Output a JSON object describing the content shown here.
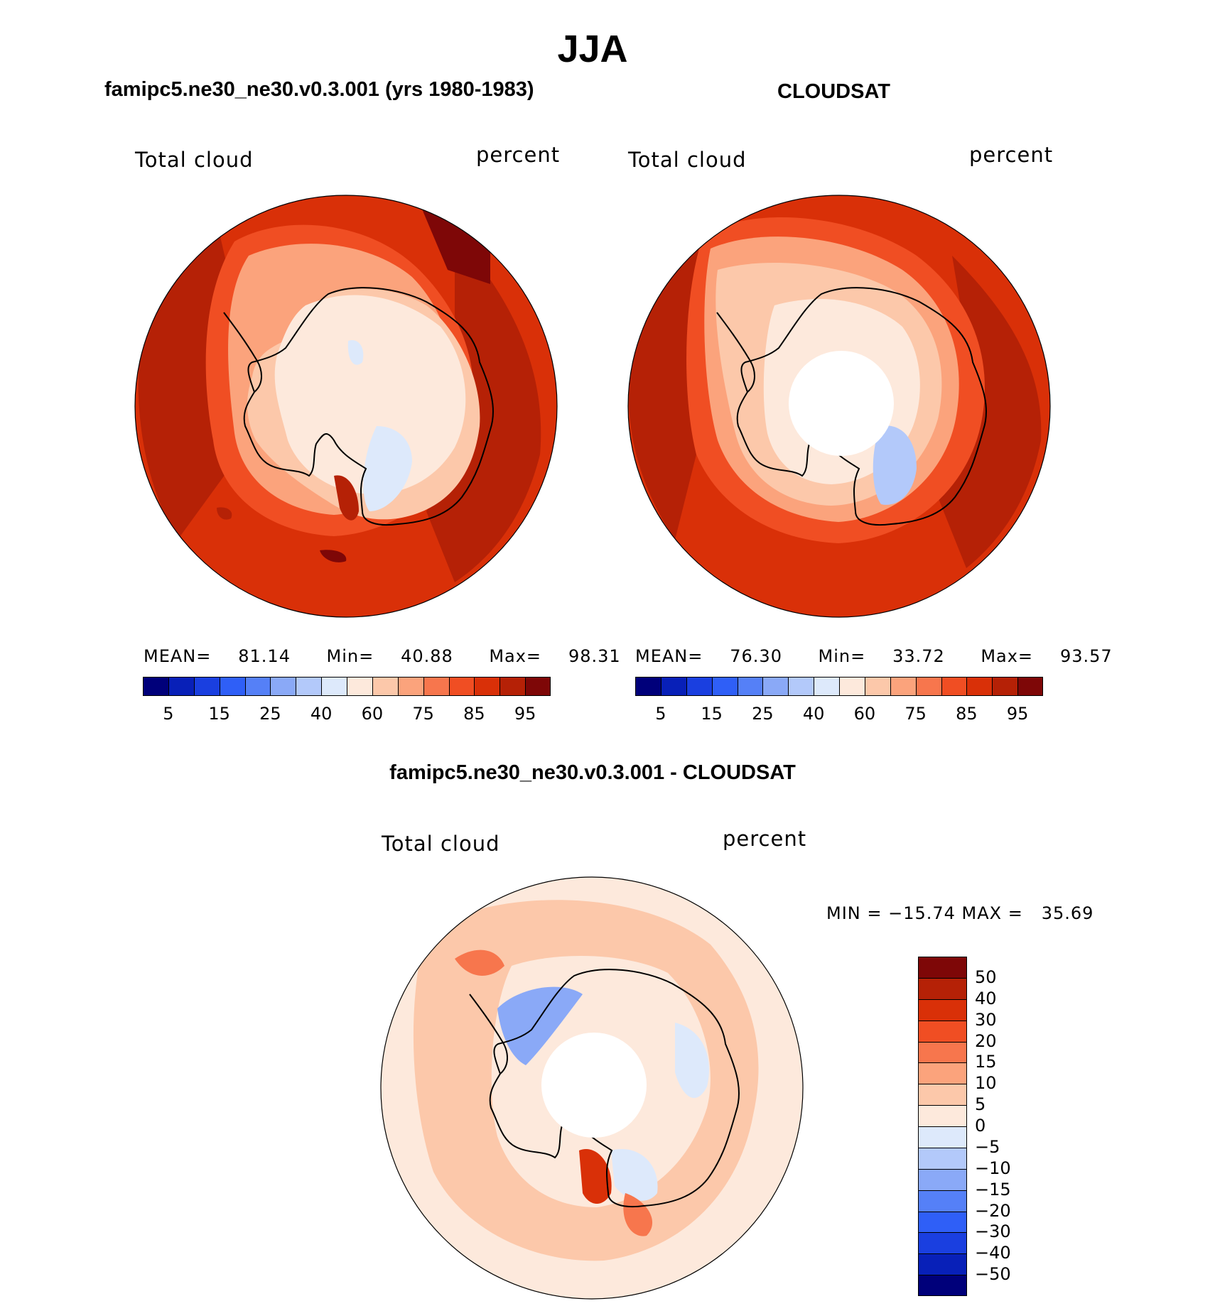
{
  "page_title": "JJA",
  "panels": [
    {
      "heading": "famipc5.ne30_ne30.v0.3.001 (yrs 1980-1983)",
      "variable": "Total cloud",
      "units": "percent",
      "stats": {
        "mean_label": "MEAN=",
        "mean": "81.14",
        "min_label": "Min=",
        "min": "40.88",
        "max_label": "Max=",
        "max": "98.31"
      }
    },
    {
      "heading": "CLOUDSAT",
      "variable": "Total cloud",
      "units": "percent",
      "stats": {
        "mean_label": "MEAN=",
        "mean": "76.30",
        "min_label": "Min=",
        "min": "33.72",
        "max_label": "Max=",
        "max": "93.57"
      }
    },
    {
      "heading": "famipc5.ne30_ne30.v0.3.001 - CLOUDSAT",
      "variable": "Total cloud",
      "units": "percent",
      "range_text": "MIN = −15.74 MAX =   35.69"
    }
  ],
  "chart_data": [
    {
      "type": "heatmap",
      "projection": "south-polar-stereographic",
      "title": "famipc5.ne30_ne30.v0.3.001 (yrs 1980-1983)",
      "field": "Total cloud",
      "units": "percent",
      "mean": 81.14,
      "min": 40.88,
      "max": 98.31,
      "colorbar": {
        "orientation": "horizontal",
        "levels": [
          5,
          10,
          15,
          20,
          25,
          30,
          40,
          50,
          60,
          70,
          75,
          80,
          85,
          90,
          95
        ],
        "tick_labels": [
          "5",
          "15",
          "25",
          "40",
          "60",
          "75",
          "85",
          "95"
        ],
        "colors": [
          "#00007a",
          "#0820b8",
          "#1a3fe0",
          "#2f5ff7",
          "#5580f7",
          "#8aa9f7",
          "#b3c9fa",
          "#dde9fb",
          "#fde9dc",
          "#fcc8aa",
          "#fba37c",
          "#f7764d",
          "#f04e23",
          "#d93008",
          "#b52106",
          "#7e0707"
        ]
      }
    },
    {
      "type": "heatmap",
      "projection": "south-polar-stereographic",
      "title": "CLOUDSAT",
      "field": "Total cloud",
      "units": "percent",
      "mean": 76.3,
      "min": 33.72,
      "max": 93.57,
      "colorbar": {
        "orientation": "horizontal",
        "levels": [
          5,
          10,
          15,
          20,
          25,
          30,
          40,
          50,
          60,
          70,
          75,
          80,
          85,
          90,
          95
        ],
        "tick_labels": [
          "5",
          "15",
          "25",
          "40",
          "60",
          "75",
          "85",
          "95"
        ],
        "colors": [
          "#00007a",
          "#0820b8",
          "#1a3fe0",
          "#2f5ff7",
          "#5580f7",
          "#8aa9f7",
          "#b3c9fa",
          "#dde9fb",
          "#fde9dc",
          "#fcc8aa",
          "#fba37c",
          "#f7764d",
          "#f04e23",
          "#d93008",
          "#b52106",
          "#7e0707"
        ]
      }
    },
    {
      "type": "heatmap",
      "projection": "south-polar-stereographic",
      "title": "famipc5.ne30_ne30.v0.3.001 - CLOUDSAT",
      "field": "Total cloud",
      "units": "percent",
      "min": -15.74,
      "max": 35.69,
      "colorbar": {
        "orientation": "vertical",
        "levels": [
          50,
          40,
          30,
          20,
          15,
          10,
          5,
          0,
          -5,
          -10,
          -15,
          -20,
          -30,
          -40,
          -50
        ],
        "tick_labels": [
          "50",
          "40",
          "30",
          "20",
          "15",
          "10",
          "5",
          "0",
          "−5",
          "−10",
          "−15",
          "−20",
          "−30",
          "−40",
          "−50"
        ],
        "colors": [
          "#7e0707",
          "#b52106",
          "#d93008",
          "#f04e23",
          "#f7764d",
          "#fba37c",
          "#fcc8aa",
          "#fde9dc",
          "#dde9fb",
          "#b3c9fa",
          "#8aa9f7",
          "#5580f7",
          "#2f5ff7",
          "#1a3fe0",
          "#0820b8",
          "#00007a"
        ]
      }
    }
  ]
}
